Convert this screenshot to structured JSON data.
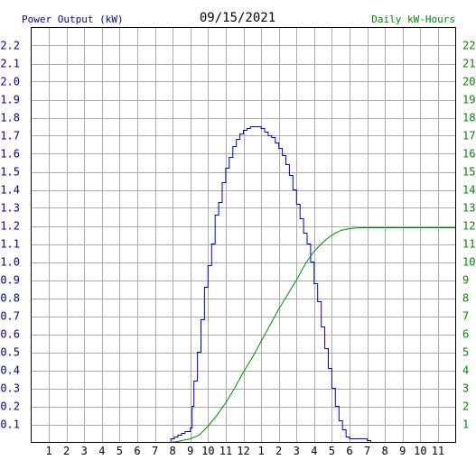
{
  "chart_data": {
    "type": "line",
    "title": "09/15/2021",
    "left_axis_label": "Power Output (kW)",
    "right_axis_label": "Daily kW-Hours",
    "x_tick_labels": [
      "1",
      "2",
      "3",
      "4",
      "5",
      "6",
      "7",
      "8",
      "9",
      "10",
      "11",
      "12",
      "1",
      "2",
      "3",
      "4",
      "5",
      "6",
      "7",
      "8",
      "9",
      "10",
      "11"
    ],
    "x_range_hours": [
      0,
      24
    ],
    "left_ylim": [
      0,
      2.3
    ],
    "left_ticks": [
      "0.1",
      "0.2",
      "0.3",
      "0.4",
      "0.5",
      "0.6",
      "0.7",
      "0.8",
      "0.9",
      "1.0",
      "1.1",
      "1.2",
      "1.3",
      "1.4",
      "1.5",
      "1.6",
      "1.7",
      "1.8",
      "1.9",
      "2.0",
      "2.1",
      "2.2"
    ],
    "right_ylim": [
      0,
      23
    ],
    "right_ticks": [
      "1",
      "2",
      "3",
      "4",
      "5",
      "6",
      "7",
      "8",
      "9",
      "10",
      "11",
      "12",
      "13",
      "14",
      "15",
      "16",
      "17",
      "18",
      "19",
      "20",
      "21",
      "22"
    ],
    "grid": true,
    "colors": {
      "power": "#0000cc",
      "energy": "#008800",
      "left_axis": "#000099",
      "right_axis": "#008800",
      "grid": "#aaaaaa",
      "text": "#000000"
    },
    "series": [
      {
        "axis": "left",
        "x": [
          7.7,
          7.9,
          8.1,
          8.3,
          8.5,
          8.7,
          8.9,
          9.0,
          9.1,
          9.2,
          9.4,
          9.6,
          9.8,
          10.0,
          10.2,
          10.4,
          10.6,
          10.8,
          11.0,
          11.2,
          11.4,
          11.6,
          11.8,
          12.0,
          12.2,
          12.4,
          12.6,
          12.8,
          13.0,
          13.2,
          13.4,
          13.6,
          13.8,
          14.0,
          14.2,
          14.4,
          14.6,
          14.8,
          15.0,
          15.2,
          15.4,
          15.6,
          15.8,
          16.0,
          16.2,
          16.4,
          16.6,
          16.8,
          17.0,
          17.2,
          17.4,
          17.6,
          17.8,
          18.0,
          18.2,
          18.4,
          18.6,
          18.8,
          19.0,
          19.2,
          19.4,
          19.6,
          19.8,
          20.0,
          20.2,
          20.4
        ],
        "values": [
          0.0,
          0.02,
          0.03,
          0.04,
          0.05,
          0.06,
          0.06,
          0.08,
          0.2,
          0.34,
          0.5,
          0.68,
          0.86,
          0.98,
          1.1,
          1.26,
          1.33,
          1.44,
          1.52,
          1.58,
          1.64,
          1.68,
          1.71,
          1.73,
          1.74,
          1.75,
          1.75,
          1.75,
          1.74,
          1.72,
          1.7,
          1.69,
          1.66,
          1.63,
          1.59,
          1.54,
          1.48,
          1.4,
          1.32,
          1.24,
          1.16,
          1.1,
          1.0,
          0.88,
          0.78,
          0.64,
          0.52,
          0.41,
          0.3,
          0.2,
          0.12,
          0.07,
          0.03,
          0.02,
          0.02,
          0.02,
          0.02,
          0.02,
          0.01,
          0.0,
          0.0,
          0.0,
          0.0,
          0.0,
          0.0,
          0.0
        ]
      },
      {
        "axis": "right",
        "x": [
          8.0,
          8.5,
          9.0,
          9.5,
          10.0,
          10.5,
          11.0,
          11.5,
          12.0,
          12.5,
          13.0,
          13.5,
          14.0,
          14.5,
          15.0,
          15.5,
          16.0,
          16.5,
          17.0,
          17.5,
          18.0,
          18.5,
          19.0,
          19.5,
          20.0,
          21.0,
          22.0,
          23.0,
          24.0
        ],
        "values": [
          0.0,
          0.1,
          0.2,
          0.4,
          0.9,
          1.5,
          2.2,
          3.0,
          3.9,
          4.7,
          5.6,
          6.5,
          7.4,
          8.2,
          9.0,
          9.9,
          10.6,
          11.1,
          11.5,
          11.75,
          11.85,
          11.9,
          11.9,
          11.9,
          11.9,
          11.9,
          11.9,
          11.9,
          11.9
        ]
      }
    ]
  }
}
